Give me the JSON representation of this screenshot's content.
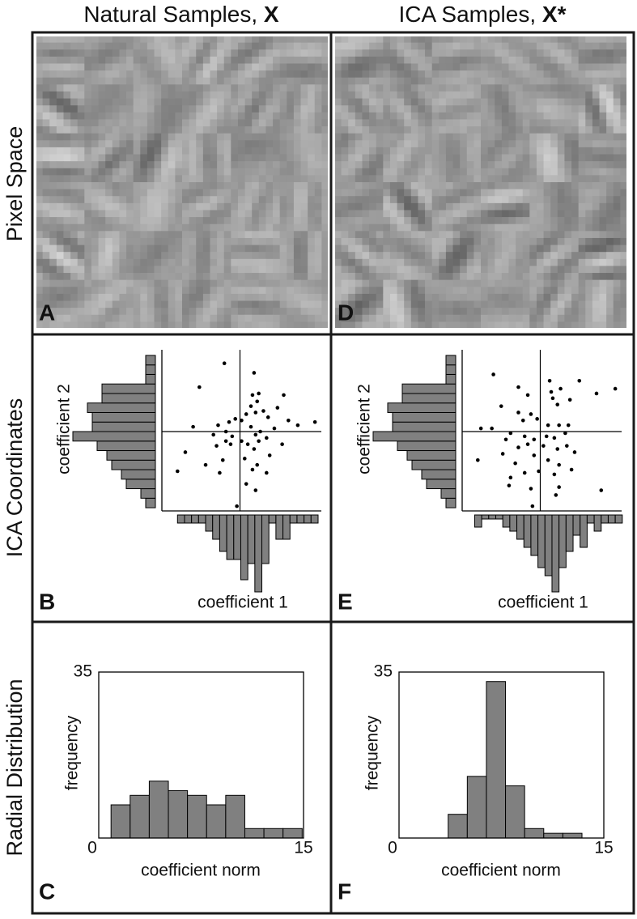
{
  "columns": [
    {
      "title": "Natural Samples, ",
      "symbol": "X"
    },
    {
      "title": "ICA Samples, ",
      "symbol": "X*"
    }
  ],
  "rows": [
    "Pixel Space",
    "ICA Coordinates",
    "Radial Distribution"
  ],
  "panels": [
    "A",
    "B",
    "C",
    "D",
    "E",
    "F"
  ],
  "chart_data": [
    {
      "type": "scatter",
      "x_label": "coefficient 1",
      "y_label": "coefficient 2",
      "xlim": [
        -5,
        5
      ],
      "ylim": [
        -5,
        5
      ],
      "color": "#000000",
      "x": [
        -1.0,
        -2.6,
        0.9,
        0.8,
        1.2,
        1.1,
        2.8,
        2.4,
        -3.0,
        -1.4,
        -0.7,
        -0.3,
        0.4,
        1.0,
        1.5,
        1.8,
        4.8,
        3.1,
        3.7,
        -0.9,
        -0.5,
        0.7,
        1.0,
        1.3,
        0.1,
        -0.6,
        0.5,
        0.9,
        1.2,
        1.7,
        -0.9,
        -3.5,
        -1.1,
        -2.2,
        0.3,
        1.1,
        1.9,
        1.7,
        -4.0,
        -1.3,
        0.8,
        0.4,
        1.0,
        -0.2,
        -1.7,
        -1.5,
        2.2,
        2.7,
        0.1,
        0.7
      ],
      "y": [
        4.3,
        2.8,
        3.7,
        2.3,
        2.4,
        1.9,
        2.3,
        1.5,
        0.3,
        0.4,
        0.6,
        0.8,
        1.1,
        1.2,
        1.3,
        0.9,
        0.6,
        0.7,
        0.4,
        0,
        -0.3,
        0.3,
        -0.2,
        0,
        -0.6,
        -0.8,
        -0.8,
        -1.1,
        -0.6,
        -0.4,
        -0.6,
        -1.3,
        -1.8,
        -2.1,
        -1.7,
        -2.1,
        -1.5,
        -2.6,
        -2.5,
        -2.6,
        -2.4,
        -3.3,
        -3.7,
        -4.7,
        -0.2,
        -0.9,
        0.2,
        -0.8,
        0.7,
        1.6
      ],
      "x_histogram": {
        "color": "#808080",
        "bins": [
          -4,
          -3.55,
          -3.1,
          -2.65,
          -2.2,
          -1.75,
          -1.3,
          -0.85,
          -0.4,
          0.05,
          0.5,
          0.95,
          1.4,
          1.85,
          2.3,
          2.75,
          3.2,
          3.65,
          4.1,
          4.55,
          5.0
        ],
        "counts": [
          2,
          2,
          2,
          2,
          4,
          6,
          9,
          11,
          11,
          16,
          12,
          19,
          12,
          2,
          6,
          6,
          2,
          2,
          2,
          2
        ]
      },
      "y_histogram": {
        "color": "#808080",
        "bins": [
          -4.8,
          -4.2,
          -3.6,
          -3.0,
          -2.4,
          -1.8,
          -1.2,
          -0.6,
          0,
          0.6,
          1.2,
          1.8,
          2.4,
          3.0,
          3.6,
          4.2,
          4.8
        ],
        "counts": [
          2,
          3,
          6,
          7,
          9,
          10,
          12,
          17,
          13,
          13,
          14,
          11,
          11,
          2,
          2,
          2
        ]
      }
    },
    {
      "type": "histogram",
      "x_label": "coefficient norm",
      "y_label": "frequency",
      "xlim": [
        0,
        15
      ],
      "ylim": [
        0,
        35
      ],
      "xticks": [
        0,
        15
      ],
      "yticks": [
        35
      ],
      "color": "#808080",
      "bins": [
        0.9,
        2.3,
        3.7,
        5.1,
        6.5,
        7.9,
        9.3,
        10.7,
        12.1,
        13.5,
        14.9
      ],
      "counts": [
        7,
        9,
        12,
        10,
        9,
        7,
        9,
        2,
        2,
        2
      ]
    },
    {
      "type": "scatter",
      "x_label": "coefficient 1",
      "y_label": "coefficient 2",
      "xlim": [
        -5,
        5
      ],
      "ylim": [
        -5,
        5
      ],
      "color": "#000000",
      "x": [
        -3.0,
        -1.4,
        -2.5,
        -0.8,
        0.6,
        0.7,
        0.8,
        1.3,
        1.1,
        1.9,
        2.5,
        3.6,
        4.8,
        -3.8,
        -3.1,
        -1.4,
        -1.1,
        -0.6,
        -0.2,
        0.5,
        1.2,
        1.8,
        -1.9,
        -1.0,
        -0.4,
        0.4,
        0.9,
        1.6,
        -2.2,
        -1.4,
        -0.8,
        0.2,
        1.1,
        1.7,
        -4.0,
        -2.4,
        -1.6,
        -0.4,
        0.5,
        1.2,
        2.2,
        -1.9,
        -1.0,
        -0.1,
        0.9,
        2.0,
        1.2,
        -2.0,
        -0.6,
        1.0,
        3.9,
        -0.5
      ],
      "y": [
        3.6,
        2.8,
        1.6,
        2.3,
        3.2,
        2.5,
        2.1,
        2.7,
        1.7,
        2.0,
        3.2,
        2.4,
        2.7,
        0.2,
        0.2,
        1.2,
        0.7,
        1.1,
        0.8,
        0.4,
        0.4,
        0.4,
        -0.1,
        -0.3,
        -0.5,
        -0.3,
        -0.4,
        -0.1,
        -0.5,
        -1.0,
        -0.8,
        -0.9,
        -1.1,
        -0.9,
        -1.8,
        -1.4,
        -2.0,
        -1.5,
        -1.8,
        -2.1,
        -1.3,
        -2.9,
        -2.6,
        -2.5,
        -2.7,
        -2.4,
        -3.5,
        -3.4,
        -3.6,
        -4.0,
        -3.7,
        -4.7
      ],
      "x_histogram": {
        "color": "#808080",
        "bins": [
          -4.2,
          -3.75,
          -3.3,
          -2.85,
          -2.4,
          -1.95,
          -1.5,
          -1.05,
          -0.6,
          -0.15,
          0.3,
          0.75,
          1.2,
          1.65,
          2.1,
          2.55,
          3.0,
          3.45,
          3.9,
          4.35,
          4.8,
          5.25
        ],
        "counts": [
          3,
          1,
          1,
          1,
          3,
          4,
          6,
          8,
          10,
          13,
          15,
          19,
          13,
          9,
          5,
          8,
          2,
          4,
          2,
          2,
          2
        ]
      },
      "y_histogram": {
        "color": "#808080",
        "bins": [
          -4.8,
          -4.2,
          -3.6,
          -3.0,
          -2.4,
          -1.8,
          -1.2,
          -0.6,
          0,
          0.6,
          1.2,
          1.8,
          2.4,
          3.0,
          3.6,
          4.2,
          4.8
        ],
        "counts": [
          2,
          3,
          6,
          7,
          9,
          10,
          12,
          17,
          13,
          13,
          14,
          11,
          11,
          2,
          2,
          2
        ]
      }
    },
    {
      "type": "histogram",
      "x_label": "coefficient norm",
      "y_label": "frequency",
      "xlim": [
        0,
        15
      ],
      "ylim": [
        0,
        35
      ],
      "xticks": [
        0,
        15
      ],
      "yticks": [
        35
      ],
      "color": "#808080",
      "bins": [
        3.6,
        5.0,
        6.4,
        7.8,
        9.2,
        10.6,
        12.0,
        13.4
      ],
      "counts": [
        5,
        13,
        33,
        11,
        2,
        1,
        1
      ]
    }
  ]
}
